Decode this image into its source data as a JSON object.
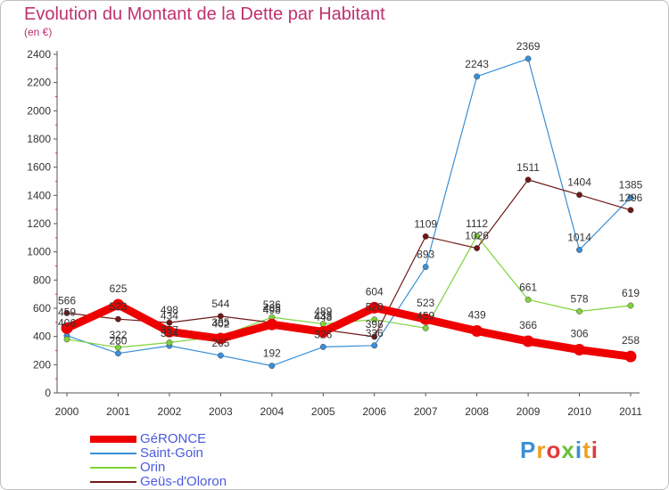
{
  "header": {
    "title": "Evolution du Montant de la Dette par Habitant",
    "subtitle": "(en €)"
  },
  "logo": {
    "text": "Proxiti",
    "colors": [
      "#3a8fd6",
      "#f0a020",
      "#e03a3a",
      "#6abf3a",
      "#3a8fd6",
      "#f0a020",
      "#e03a3a"
    ]
  },
  "chart_data": {
    "type": "line",
    "title": "Evolution du Montant de la Dette par Habitant",
    "subtitle": "(en €)",
    "xlabel": "",
    "ylabel": "",
    "x": [
      "2000",
      "2001",
      "2002",
      "2003",
      "2004",
      "2005",
      "2006",
      "2007",
      "2008",
      "2009",
      "2010",
      "2011"
    ],
    "ylim": [
      0,
      2400
    ],
    "yticks": [
      0,
      200,
      400,
      600,
      800,
      1000,
      1200,
      1400,
      1600,
      1800,
      2000,
      2200,
      2400
    ],
    "grid": false,
    "legend": "bottom-left",
    "series": [
      {
        "name": "GéRONCE",
        "color": "#ee0000",
        "values": [
          459,
          625,
          434,
          385,
          485,
          433,
          604,
          523,
          439,
          366,
          306,
          258
        ]
      },
      {
        "name": "Saint-Goin",
        "color": "#3a8fd6",
        "values": [
          406,
          280,
          334,
          265,
          192,
          326,
          336,
          893,
          2243,
          2369,
          1014,
          1385
        ]
      },
      {
        "name": "Orin",
        "color": "#7fd33a",
        "values": [
          380,
          322,
          357,
          402,
          536,
          489,
          520,
          459,
          1112,
          661,
          578,
          619
        ]
      },
      {
        "name": "Geüs-d'Oloron",
        "color": "#701818",
        "values": [
          566,
          523,
          498,
          544,
          498,
          448,
          398,
          1109,
          1026,
          1511,
          1404,
          1296
        ]
      }
    ],
    "labels": {
      "GéRONCE": [
        "459",
        "625",
        "434",
        "385",
        "485",
        "433",
        "604",
        "523",
        "439",
        "366",
        "306",
        "258"
      ],
      "Saint-Goin": [
        "406",
        "280",
        "334",
        "265",
        "192",
        "326",
        "336",
        "893",
        "2243",
        "2369",
        "1014",
        "1385"
      ],
      "Orin": [
        "",
        "322",
        "357",
        "402",
        "536",
        "489",
        "520",
        "459",
        "1112",
        "661",
        "578",
        "619"
      ],
      "Geüs-d'Oloron": [
        "566",
        "523",
        "498",
        "544",
        "498",
        "448",
        "398",
        "1109",
        "1026",
        "1511",
        "1404",
        "1296"
      ]
    }
  }
}
